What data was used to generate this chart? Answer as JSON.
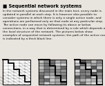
{
  "title": "Sequential network systems",
  "body_text": "In the network systems discussed in the main text, every node is\nupdated in parallel at each step. It is however also possible to\nconsider systems in which there is only a single active node, and\noperations are performed only on that node at any particular step.\nThe active node can move by following its above or below\nconnections, in a way that is determined by a rule which depends on\nthe local structure of the network. The pictures below show\nexamples of sequential network systems; the path of the active node\nis indicated by a thick black line.",
  "background_color": "#e8e4de",
  "title_color": "#000000",
  "body_color": "#111111",
  "title_fontsize": 4.8,
  "body_fontsize": 3.2,
  "bullet_char": "■"
}
